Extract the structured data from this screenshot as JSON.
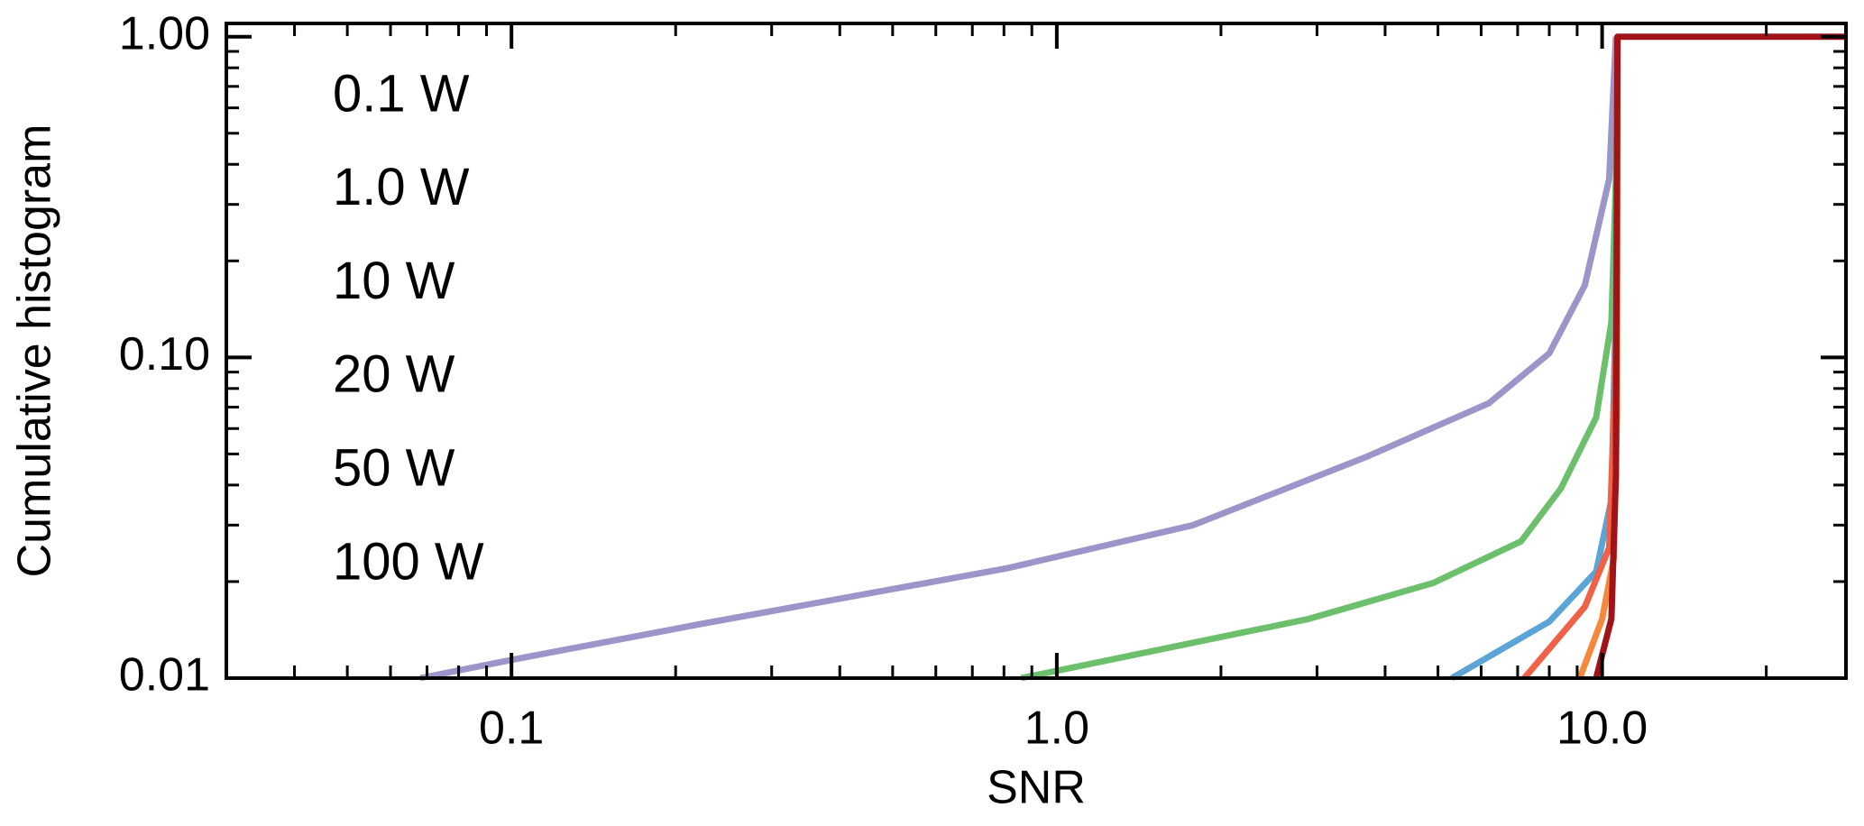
{
  "chart_data": {
    "type": "line",
    "x_label": "SNR",
    "y_label": "Cumulative histogram",
    "x_scale": "log",
    "y_scale": "log",
    "xlim": [
      0.03,
      28
    ],
    "ylim": [
      0.01,
      1.1
    ],
    "xticks": [
      0.1,
      {
        "value": 1,
        "label": "1.0"
      },
      {
        "value": 10,
        "label": "10.0"
      }
    ],
    "yticks": [
      0.01,
      {
        "value": 0.1,
        "label": "0.10"
      },
      {
        "value": 1,
        "label": "1.00"
      }
    ],
    "series": [
      {
        "name": "0.1 W",
        "color": "#9b95c9",
        "x": [
          0.068,
          0.1,
          0.22,
          0.81,
          1.78,
          3.7,
          6.2,
          8.0,
          9.3,
          10.3,
          10.6
        ],
        "values": [
          0.01,
          0.0114,
          0.0147,
          0.022,
          0.03,
          0.049,
          0.072,
          0.103,
          0.168,
          0.36,
          1.0
        ]
      },
      {
        "name": "1.0 W",
        "color": "#6cc06c",
        "x": [
          0.86,
          1.78,
          2.9,
          4.9,
          7.1,
          8.4,
          9.75,
          10.4,
          10.6,
          10.65
        ],
        "values": [
          0.01,
          0.0129,
          0.0153,
          0.0198,
          0.0267,
          0.039,
          0.065,
          0.129,
          0.36,
          1.0
        ]
      },
      {
        "name": "10 W",
        "color": "#5aa5d6",
        "x": [
          5.3,
          8.0,
          9.75,
          10.4,
          10.6,
          10.67
        ],
        "values": [
          0.01,
          0.015,
          0.0215,
          0.036,
          0.153,
          1.0
        ]
      },
      {
        "name": "20 W",
        "color": "#ef6247",
        "x": [
          7.2,
          9.3,
          10.3,
          10.6,
          10.67
        ],
        "values": [
          0.01,
          0.0167,
          0.0255,
          0.1,
          1.0
        ]
      },
      {
        "name": "50 W",
        "color": "#f5883a",
        "x": [
          9.1,
          10.0,
          10.5,
          10.65,
          10.67
        ],
        "values": [
          0.01,
          0.0153,
          0.0235,
          0.066,
          1.0
        ]
      },
      {
        "name": "100 W",
        "color": "#a01319",
        "x": [
          9.75,
          10.4,
          10.6,
          10.67,
          28
        ],
        "values": [
          0.01,
          0.0153,
          0.043,
          1.0,
          1.0
        ]
      }
    ]
  }
}
